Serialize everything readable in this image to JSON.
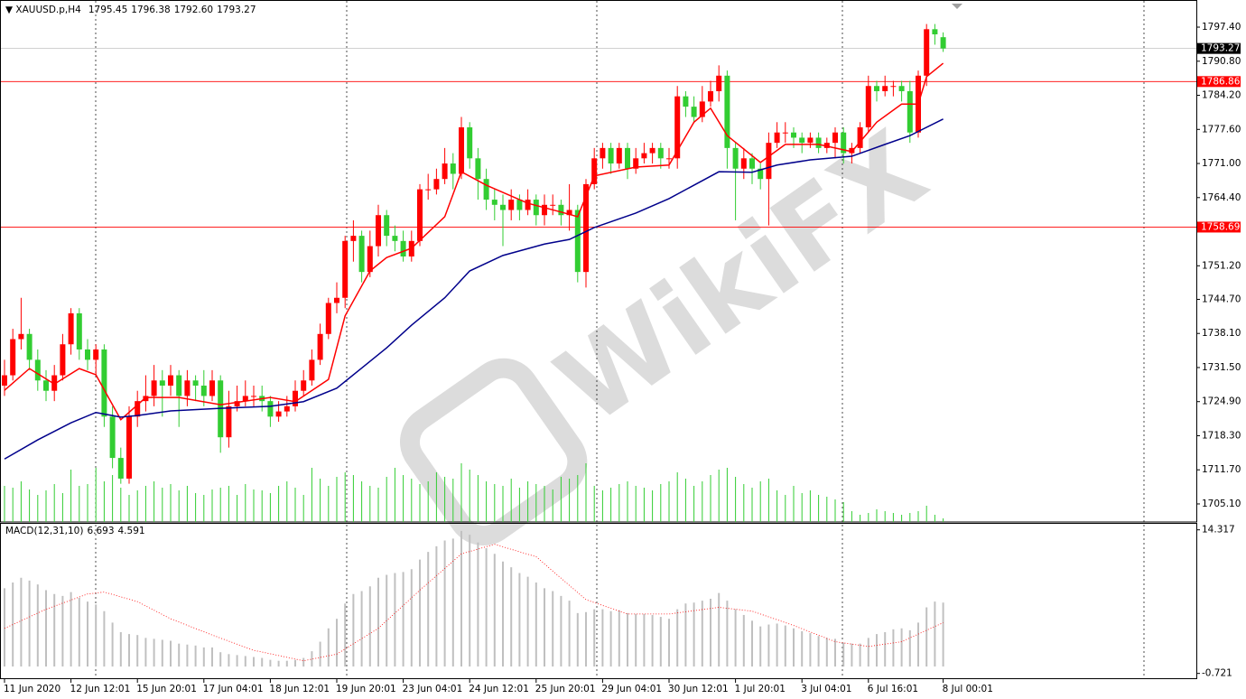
{
  "chart_data": {
    "type": "candlestick",
    "title": "XAUUSD.p,H4",
    "last_bar_labels": [
      "1795.45",
      "1796.38",
      "1792.60",
      "1793.27"
    ],
    "watermark": "WikiFX",
    "up_color": "#ff0000",
    "down_color": "#32cd32",
    "ylim": [
      1701.6,
      1802.3
    ],
    "yticks": [
      {
        "value": 1797.4,
        "label": "1797.40"
      },
      {
        "value": 1790.8,
        "label": "1790.80"
      },
      {
        "value": 1784.2,
        "label": "1784.20"
      },
      {
        "value": 1777.6,
        "label": "1777.60"
      },
      {
        "value": 1771,
        "label": "1771.00"
      },
      {
        "value": 1764.4,
        "label": "1764.40"
      },
      {
        "value": 1751.2,
        "label": "1751.20"
      },
      {
        "value": 1744.7,
        "label": "1744.70"
      },
      {
        "value": 1738.1,
        "label": "1738.10"
      },
      {
        "value": 1731.5,
        "label": "1731.50"
      },
      {
        "value": 1724.9,
        "label": "1724.90"
      },
      {
        "value": 1718.3,
        "label": "1718.30"
      },
      {
        "value": 1711.7,
        "label": "1711.70"
      },
      {
        "value": 1705.1,
        "label": "1705.10"
      }
    ],
    "xticks": [
      {
        "value": 0,
        "label": "11 Jun 2020"
      },
      {
        "value": 8,
        "label": "12 Jun 12:01"
      },
      {
        "value": 16,
        "label": "15 Jun 20:01"
      },
      {
        "value": 24,
        "label": "17 Jun 04:01"
      },
      {
        "value": 32,
        "label": "18 Jun 12:01"
      },
      {
        "value": 40,
        "label": "19 Jun 20:01"
      },
      {
        "value": 48,
        "label": "23 Jun 04:01"
      },
      {
        "value": 56,
        "label": "24 Jun 12:01"
      },
      {
        "value": 64,
        "label": "25 Jun 20:01"
      },
      {
        "value": 72,
        "label": "29 Jun 04:01"
      },
      {
        "value": 80,
        "label": "30 Jun 12:01"
      },
      {
        "value": 88,
        "label": "1 Jul 20:01"
      },
      {
        "value": 96,
        "label": "3 Jul 04:01"
      },
      {
        "value": 104,
        "label": "6 Jul 16:01"
      },
      {
        "value": 113,
        "label": "8 Jul 00:01"
      }
    ],
    "open": [
      1728,
      1730,
      1737,
      1738,
      1733,
      1729,
      1727,
      1730,
      1736,
      1742,
      1735,
      1733,
      1735,
      1722,
      1714,
      1710,
      1722,
      1725,
      1726,
      1729,
      1728,
      1730,
      1726,
      1729,
      1728,
      1726,
      1729,
      1718,
      1724,
      1725,
      1726,
      1726,
      1725,
      1722,
      1723,
      1724,
      1727,
      1729,
      1733,
      1738,
      1744,
      1745,
      1756,
      1757,
      1750,
      1755,
      1761,
      1757,
      1756,
      1753,
      1756,
      1766,
      1766,
      1768,
      1771,
      1769,
      1778,
      1772,
      1768,
      1764,
      1763,
      1762,
      1764,
      1762,
      1764,
      1761,
      1763,
      1763,
      1761,
      1762,
      1750,
      1767,
      1772,
      1774,
      1771,
      1774,
      1770,
      1772,
      1773,
      1774,
      1772,
      1772,
      1784,
      1782,
      1780,
      1783,
      1785,
      1788,
      1774,
      1770,
      1772,
      1770,
      1768,
      1775,
      1777,
      1777,
      1776,
      1775,
      1776,
      1774,
      1775,
      1777,
      1773,
      1774,
      1778,
      1786,
      1785,
      1786,
      1786,
      1785,
      1777,
      1788,
      1797,
      1795.45
    ],
    "high": [
      1733,
      1739,
      1745,
      1739,
      1735,
      1731,
      1732,
      1738,
      1743,
      1743,
      1737,
      1736,
      1736,
      1724,
      1716,
      1724,
      1727,
      1730,
      1732,
      1731,
      1732,
      1731,
      1731,
      1730,
      1731,
      1731,
      1730,
      1727,
      1728,
      1729,
      1728,
      1728,
      1726,
      1725,
      1726,
      1729,
      1731,
      1735,
      1740,
      1745,
      1748,
      1757,
      1760,
      1758,
      1758,
      1763,
      1762,
      1759,
      1758,
      1758,
      1767,
      1769,
      1770,
      1774,
      1773,
      1780,
      1779,
      1774,
      1770,
      1766,
      1765,
      1766,
      1765,
      1766,
      1765,
      1765,
      1765,
      1764,
      1767,
      1763,
      1768,
      1774,
      1775,
      1775,
      1775,
      1775,
      1774,
      1775,
      1775,
      1775,
      1774,
      1786,
      1785,
      1784,
      1786,
      1787,
      1790,
      1789,
      1775,
      1774,
      1773,
      1771,
      1777,
      1779,
      1779,
      1778,
      1777,
      1777,
      1777,
      1776,
      1778,
      1778,
      1775,
      1779,
      1788,
      1787,
      1788,
      1787,
      1787,
      1787,
      1789,
      1798,
      1798,
      1796.38
    ],
    "low": [
      1726,
      1729,
      1735,
      1731,
      1727,
      1725,
      1725,
      1729,
      1734,
      1733,
      1731,
      1730,
      1720,
      1712,
      1709,
      1709,
      1720,
      1723,
      1724,
      1722,
      1726,
      1720,
      1724,
      1725,
      1724,
      1725,
      1715,
      1716,
      1723,
      1724,
      1724,
      1723,
      1720,
      1721,
      1722,
      1723,
      1726,
      1728,
      1732,
      1737,
      1742,
      1743,
      1752,
      1748,
      1749,
      1753,
      1755,
      1754,
      1752,
      1752,
      1755,
      1764,
      1765,
      1767,
      1766,
      1768,
      1770,
      1764,
      1762,
      1760,
      1755,
      1760,
      1760,
      1761,
      1759,
      1759,
      1761,
      1759,
      1758,
      1748,
      1747,
      1766,
      1770,
      1769,
      1770,
      1768,
      1769,
      1771,
      1771,
      1770,
      1770,
      1770,
      1780,
      1779,
      1779,
      1782,
      1783,
      1770,
      1760,
      1768,
      1767,
      1766,
      1759,
      1774,
      1775,
      1774,
      1773,
      1774,
      1773,
      1773,
      1772,
      1771,
      1771,
      1773,
      1777,
      1783,
      1784,
      1784,
      1783,
      1775,
      1776,
      1786,
      1794,
      1792.6
    ],
    "close": [
      1730,
      1737,
      1738,
      1733,
      1729,
      1727,
      1730,
      1736,
      1742,
      1735,
      1733,
      1735,
      1722,
      1714,
      1710,
      1722,
      1725,
      1726,
      1729,
      1728,
      1730,
      1726,
      1729,
      1728,
      1726,
      1729,
      1718,
      1724,
      1725,
      1726,
      1726,
      1725,
      1722,
      1723,
      1724,
      1727,
      1729,
      1733,
      1738,
      1744,
      1745,
      1756,
      1757,
      1750,
      1755,
      1761,
      1757,
      1756,
      1753,
      1756,
      1766,
      1766,
      1768,
      1771,
      1769,
      1778,
      1772,
      1768,
      1764,
      1763,
      1762,
      1764,
      1762,
      1764,
      1761,
      1763,
      1763,
      1761,
      1762,
      1750,
      1767,
      1772,
      1774,
      1771,
      1774,
      1770,
      1772,
      1773,
      1774,
      1772,
      1772,
      1784,
      1782,
      1780,
      1783,
      1785,
      1788,
      1774,
      1770,
      1772,
      1770,
      1768,
      1775,
      1777,
      1777,
      1776,
      1775,
      1776,
      1774,
      1775,
      1777,
      1773,
      1774,
      1778,
      1786,
      1785,
      1786,
      1786,
      1785,
      1777,
      1788,
      1797,
      1796,
      1793.27
    ],
    "levels": [
      {
        "value": 1786.86,
        "color": "#ff0000"
      },
      {
        "value": 1758.69,
        "color": "#ff0000"
      }
    ],
    "moving_averages": [
      {
        "color": "#ff0000",
        "x": [
          0,
          3,
          6,
          9,
          11,
          14,
          17,
          21,
          26,
          32,
          35,
          39,
          41,
          44,
          46,
          49,
          53,
          55,
          58,
          63,
          67,
          69,
          71,
          76,
          80,
          83,
          85,
          87,
          91,
          94,
          98,
          102,
          105,
          108,
          110,
          111,
          113
        ],
        "values": [
          1727.1,
          1731.3,
          1728.3,
          1731.3,
          1730.1,
          1721.4,
          1725.7,
          1725.7,
          1724.3,
          1725.7,
          1724.9,
          1729.2,
          1741.5,
          1750.2,
          1752.8,
          1754.6,
          1760.7,
          1769.4,
          1766.8,
          1763.3,
          1761.6,
          1760.7,
          1768.6,
          1770.3,
          1770.7,
          1779.0,
          1781.7,
          1776.4,
          1771.2,
          1774.7,
          1774.7,
          1773.3,
          1779.0,
          1782.5,
          1782.5,
          1787.8,
          1790.4
        ]
      },
      {
        "color": "#00008b",
        "x": [
          0,
          4,
          8,
          11,
          14,
          16,
          20,
          26,
          32,
          36,
          40,
          43,
          46,
          49,
          53,
          56,
          60,
          65,
          68,
          71,
          76,
          80,
          83,
          86,
          90,
          93,
          97,
          102,
          106,
          109,
          113
        ],
        "values": [
          1713.8,
          1717.5,
          1720.8,
          1722.8,
          1721.9,
          1722.2,
          1723.1,
          1723.6,
          1724.0,
          1724.9,
          1727.5,
          1731.4,
          1735.3,
          1739.7,
          1745.0,
          1750.2,
          1753.2,
          1755.4,
          1756.3,
          1758.6,
          1761.4,
          1764.2,
          1766.8,
          1769.4,
          1769.3,
          1770.7,
          1771.7,
          1772.4,
          1774.7,
          1776.4,
          1779.6
        ]
      }
    ],
    "volume": {
      "color": "#32cd32",
      "values": [
        40,
        38,
        45,
        36,
        30,
        35,
        42,
        32,
        58,
        40,
        42,
        60,
        45,
        52,
        38,
        30,
        35,
        40,
        45,
        38,
        42,
        35,
        40,
        32,
        30,
        36,
        38,
        40,
        30,
        42,
        36,
        35,
        32,
        40,
        45,
        38,
        30,
        60,
        48,
        40,
        50,
        55,
        52,
        45,
        40,
        38,
        50,
        60,
        52,
        48,
        42,
        45,
        55,
        50,
        48,
        65,
        58,
        52,
        45,
        42,
        40,
        48,
        38,
        45,
        42,
        40,
        36,
        50,
        48,
        52,
        65,
        40,
        35,
        38,
        42,
        45,
        40,
        38,
        35,
        42,
        45,
        55,
        48,
        40,
        45,
        52,
        58,
        60,
        50,
        42,
        38,
        45,
        48,
        35,
        30,
        40,
        32,
        35,
        30,
        28,
        25,
        22,
        12,
        8,
        10,
        14,
        12,
        10,
        8,
        10,
        12,
        18,
        8,
        4
      ]
    },
    "indicator": {
      "type": "macd",
      "title": "MACD(12,31,10)",
      "histogram_color": "#c0c0c0",
      "histogram": [
        8.2,
        8.8,
        9.3,
        9.0,
        8.6,
        8.0,
        7.6,
        7.4,
        7.8,
        7.2,
        6.8,
        6.5,
        5.8,
        4.6,
        3.6,
        3.4,
        3.3,
        3.0,
        2.9,
        2.8,
        2.7,
        2.4,
        2.3,
        2.2,
        2.0,
        2.0,
        1.5,
        1.3,
        1.2,
        1.1,
        1.0,
        0.9,
        0.7,
        0.6,
        0.6,
        0.7,
        0.9,
        1.6,
        2.6,
        4.0,
        5.0,
        6.6,
        7.6,
        7.9,
        8.4,
        9.3,
        9.6,
        9.8,
        9.9,
        10.2,
        11.2,
        12.0,
        12.6,
        13.2,
        13.4,
        14.2,
        13.8,
        13.0,
        12.4,
        11.8,
        11.0,
        10.4,
        9.8,
        9.4,
        8.8,
        8.2,
        7.9,
        7.4,
        6.9,
        5.6,
        5.7,
        6.0,
        6.0,
        5.8,
        5.9,
        5.6,
        5.5,
        5.5,
        5.4,
        5.2,
        5.0,
        6.0,
        6.6,
        6.7,
        6.9,
        7.1,
        7.7,
        6.9,
        6.0,
        5.4,
        4.8,
        4.2,
        4.4,
        4.5,
        4.3,
        4.0,
        3.7,
        3.5,
        3.2,
        3.0,
        2.9,
        2.5,
        2.4,
        2.4,
        3.0,
        3.4,
        3.6,
        3.9,
        4.0,
        3.8,
        4.6,
        6.2,
        6.8,
        6.693
      ],
      "signal": {
        "color": "#ff0000",
        "x": [
          0,
          5,
          10,
          12,
          16,
          20,
          25,
          30,
          36,
          40,
          45,
          50,
          55,
          59,
          64,
          70,
          75,
          80,
          86,
          90,
          95,
          100,
          104,
          108,
          113
        ],
        "values": [
          4.0,
          6.0,
          7.6,
          7.8,
          6.8,
          5.0,
          3.3,
          1.7,
          0.6,
          1.3,
          4.0,
          8.0,
          11.8,
          12.8,
          11.5,
          7.0,
          5.5,
          5.5,
          6.2,
          5.8,
          4.3,
          2.6,
          2.1,
          2.6,
          4.591
        ]
      },
      "ylim": [
        -1.32,
        14.95
      ],
      "yticks": [
        14.317,
        -0.721
      ]
    }
  }
}
